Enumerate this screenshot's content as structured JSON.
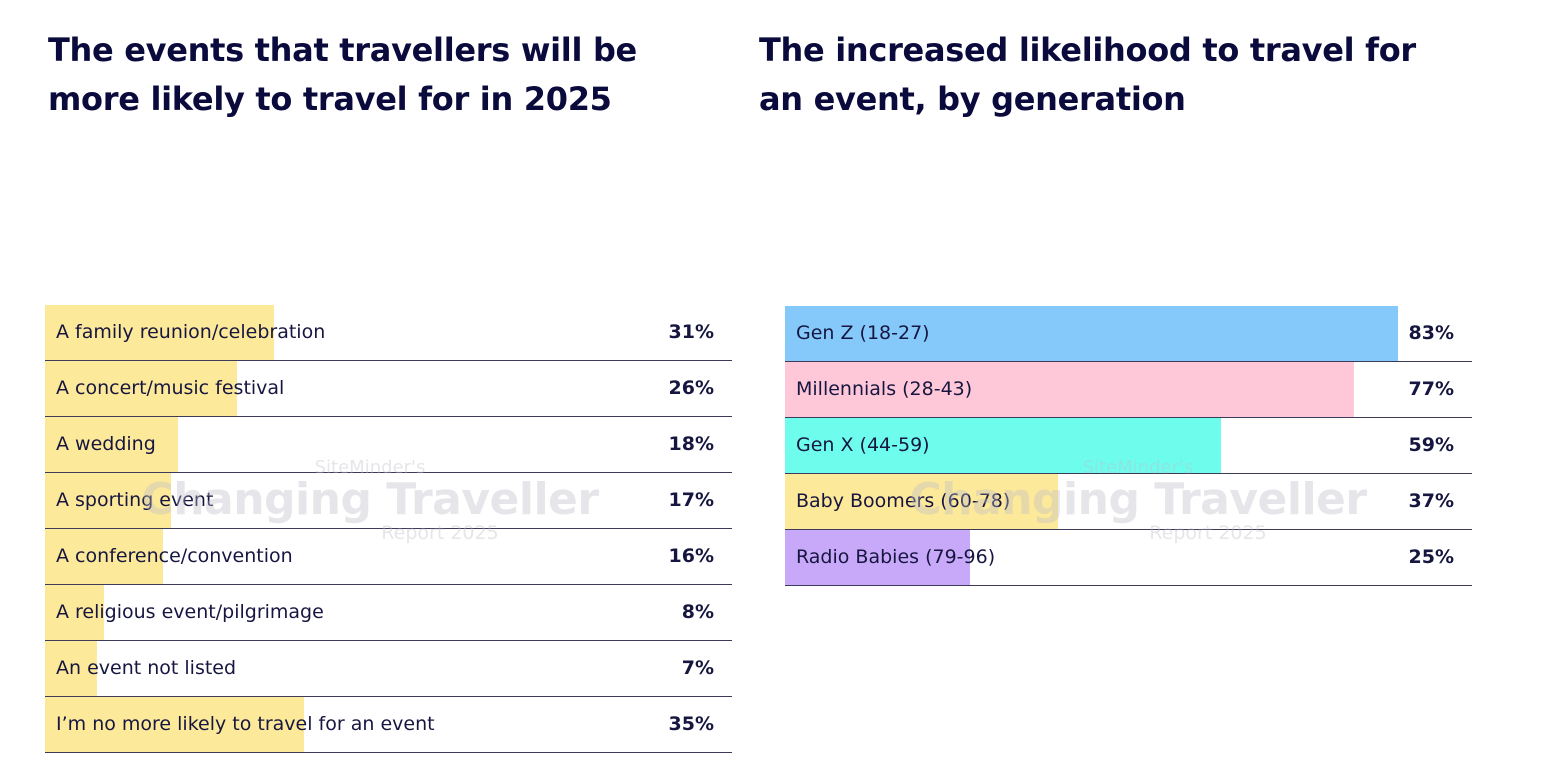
{
  "titles": {
    "left": "The events that travellers will be more likely to travel for in 2025",
    "right": "The increased likelihood to travel for an event, by generation"
  },
  "watermark": {
    "line1": "SiteMinder's",
    "line2": "Changing Traveller",
    "line3": "Report 2025"
  },
  "chart_data": [
    {
      "type": "bar",
      "orientation": "horizontal",
      "title": "The events that travellers will be more likely to travel for in 2025",
      "categories": [
        "A family reunion/celebration",
        "A concert/music festival",
        "A wedding",
        "A sporting event",
        "A conference/convention",
        "A religious event/pilgrimage",
        "An event not listed",
        "I’m no more likely to travel for an event"
      ],
      "values": [
        31,
        26,
        18,
        17,
        16,
        8,
        7,
        35
      ],
      "value_labels": [
        "31%",
        "26%",
        "18%",
        "17%",
        "16%",
        "8%",
        "7%",
        "35%"
      ],
      "colors": [
        "#fde99a",
        "#fde99a",
        "#fde99a",
        "#fde99a",
        "#fde99a",
        "#fde99a",
        "#fde99a",
        "#fde99a"
      ],
      "xlim": [
        0,
        93
      ]
    },
    {
      "type": "bar",
      "orientation": "horizontal",
      "title": "The increased likelihood to travel for an event, by generation",
      "categories": [
        "Gen Z (18-27)",
        "Millennials (28-43)",
        "Gen X (44-59)",
        "Baby Boomers (60-78)",
        "Radio Babies (79-96)"
      ],
      "values": [
        83,
        77,
        59,
        37,
        25
      ],
      "value_labels": [
        "83%",
        "77%",
        "59%",
        "37%",
        "25%"
      ],
      "colors": [
        "#85c9fb",
        "#ffc8d8",
        "#6efded",
        "#fde99a",
        "#c8a9f9"
      ],
      "xlim": [
        0,
        93
      ]
    }
  ]
}
